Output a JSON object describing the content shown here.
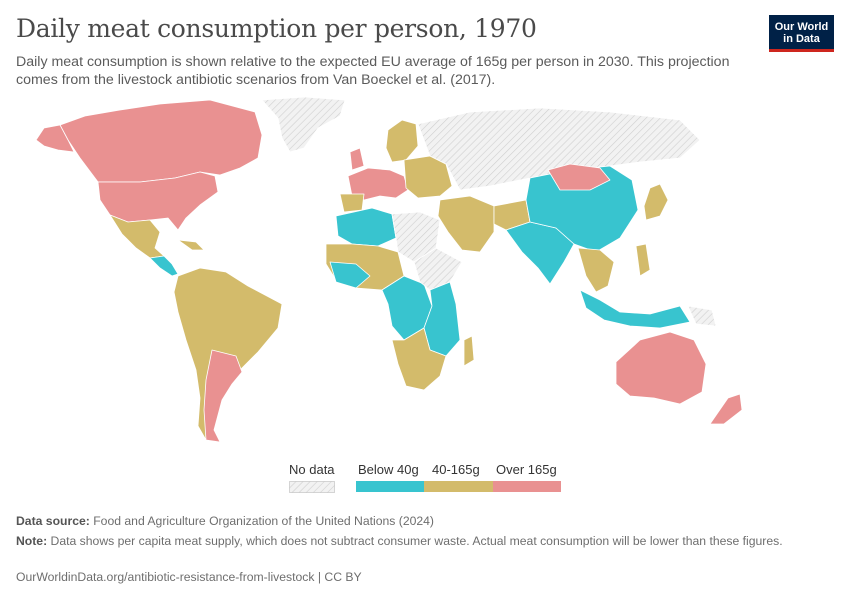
{
  "header": {
    "title": "Daily meat consumption per person, 1970",
    "subtitle": "Daily meat consumption is shown relative to the expected EU average of 165g per person in 2030. This projection comes from the livestock antibiotic scenarios from Van Boeckel et al. (2017).",
    "logo_line1": "Our World",
    "logo_line2": "in Data"
  },
  "legend": {
    "no_data_label": "No data",
    "bins": [
      {
        "label": "Below 40g",
        "color": "#38c4cf"
      },
      {
        "label": "40-165g",
        "color": "#d3bb6b"
      },
      {
        "label": "Over 165g",
        "color": "#e99191"
      }
    ],
    "no_data_color": "#e4e4e4"
  },
  "footer": {
    "source_label": "Data source:",
    "source_text": "Food and Agriculture Organization of the United Nations (2024)",
    "note_label": "Note:",
    "note_text": "Data shows per capita meat supply, which does not subtract consumer waste. Actual meat consumption will be lower than these figures.",
    "url_text": "OurWorldinData.org/antibiotic-resistance-from-livestock | CC BY"
  },
  "map_regions": {
    "greenland": "no-data",
    "canada": "over-165",
    "usa": "over-165",
    "mexico": "40-165",
    "central-america": "below-40",
    "south-america": "40-165",
    "argentina-uruguay": "over-165",
    "western-europe": "over-165",
    "scandinavia": "40-165",
    "eastern-europe": "40-165",
    "russia": "no-data",
    "north-africa": "below-40",
    "west-africa": "40-165",
    "central-africa": "below-40",
    "east-africa": "below-40",
    "southern-africa": "40-165",
    "middle-east": "40-165",
    "india": "below-40",
    "china": "below-40",
    "mongolia": "over-165",
    "southeast-asia": "40-165",
    "indonesia": "below-40",
    "japan": "40-165",
    "australia": "over-165",
    "new-zealand": "over-165"
  }
}
